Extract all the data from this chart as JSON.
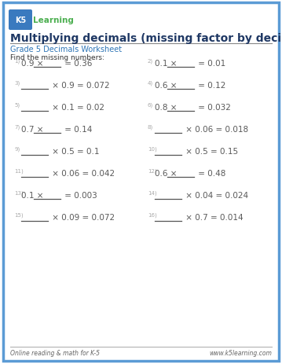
{
  "title": "Multiplying decimals (missing factor by decimals)",
  "subtitle": "Grade 5 Decimals Worksheet",
  "instruction": "Find the missing numbers:",
  "footer_left": "Online reading & math for K-5",
  "footer_right": "www.k5learning.com",
  "border_color": "#5b9bd5",
  "title_color": "#1f3864",
  "subtitle_color": "#2e75b6",
  "body_color": "#595959",
  "problems": [
    {
      "num": "1",
      "text": "0.9 × _______ = 0.36",
      "blank_after": "0.9 × ",
      "blank_before": null
    },
    {
      "num": "2",
      "text": "0.1 × _______ = 0.01",
      "blank_after": "0.1 × ",
      "blank_before": null
    },
    {
      "num": "3",
      "text": "_______ × 0.9 = 0.072",
      "blank_after": null,
      "blank_before": "× 0.9 = 0.072"
    },
    {
      "num": "4",
      "text": "0.6 × _______ = 0.12",
      "blank_after": "0.6 × ",
      "blank_before": null
    },
    {
      "num": "5",
      "text": "_______ × 0.1 = 0.02",
      "blank_after": null,
      "blank_before": "× 0.1 = 0.02"
    },
    {
      "num": "6",
      "text": "0.8 × _______ = 0.032",
      "blank_after": "0.8 × ",
      "blank_before": null
    },
    {
      "num": "7",
      "text": "0.7 × _______ = 0.14",
      "blank_after": "0.7 × ",
      "blank_before": null
    },
    {
      "num": "8",
      "text": "_______ × 0.06 = 0.018",
      "blank_after": null,
      "blank_before": "× 0.06 = 0.018"
    },
    {
      "num": "9",
      "text": "_______ × 0.5 = 0.1",
      "blank_after": null,
      "blank_before": "× 0.5 = 0.1"
    },
    {
      "num": "10",
      "text": "_______ × 0.5 = 0.15",
      "blank_after": null,
      "blank_before": "× 0.5 = 0.15"
    },
    {
      "num": "11",
      "text": "_______ × 0.06 = 0.042",
      "blank_after": null,
      "blank_before": "× 0.06 = 0.042"
    },
    {
      "num": "12",
      "text": "0.6 × _______ = 0.48",
      "blank_after": "0.6 × ",
      "blank_before": null
    },
    {
      "num": "13",
      "text": "0.1 × _______ = 0.003",
      "blank_after": "0.1 × ",
      "blank_before": null
    },
    {
      "num": "14",
      "text": "_______ × 0.04 = 0.024",
      "blank_after": null,
      "blank_before": "× 0.04 = 0.024"
    },
    {
      "num": "15",
      "text": "_______ × 0.09 = 0.072",
      "blank_after": null,
      "blank_before": "× 0.09 = 0.072"
    },
    {
      "num": "16",
      "text": "_______ × 0.7 = 0.014",
      "blank_after": null,
      "blank_before": "× 0.7 = 0.014"
    }
  ]
}
